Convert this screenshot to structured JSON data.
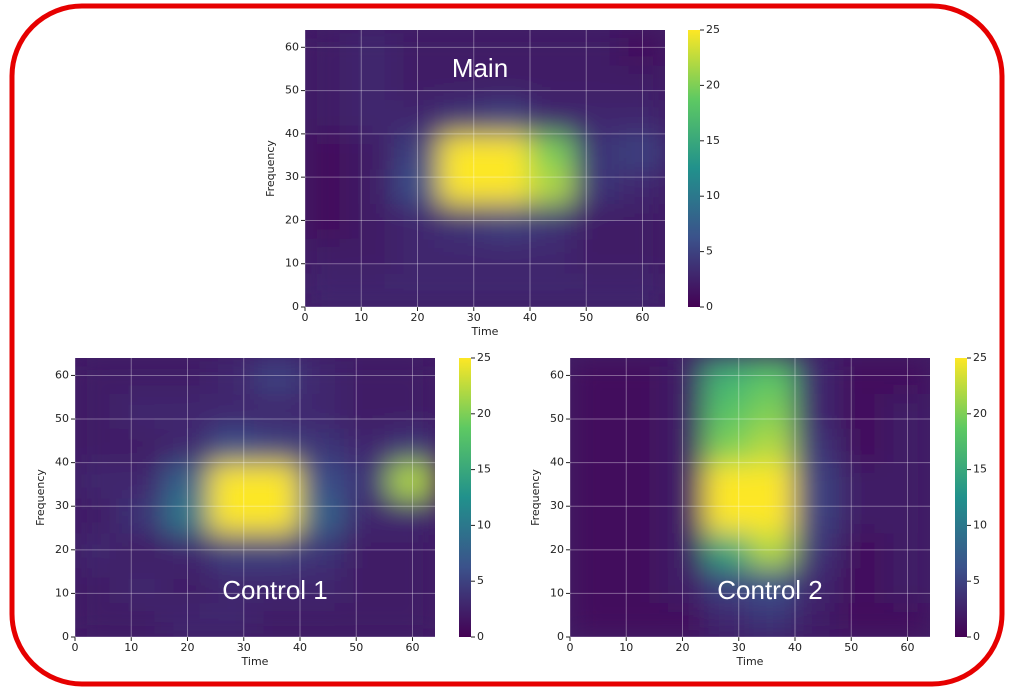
{
  "chart_data": [
    {
      "type": "heatmap",
      "title": "Main",
      "xlabel": "Time",
      "ylabel": "Frequency",
      "xlim": [
        0,
        64
      ],
      "ylim": [
        0,
        64
      ],
      "xticks": [
        0,
        10,
        20,
        30,
        40,
        50,
        60
      ],
      "yticks": [
        0,
        10,
        20,
        30,
        40,
        50,
        60
      ],
      "clim": [
        0,
        25
      ],
      "cticks": [
        0,
        5,
        10,
        15,
        20,
        25
      ],
      "grid": true,
      "z": [
        [
          3,
          3,
          3,
          3,
          3,
          3,
          3,
          3
        ],
        [
          2,
          2,
          3,
          3,
          3,
          3,
          2,
          2
        ],
        [
          1,
          2,
          3,
          4,
          5,
          4,
          2,
          2
        ],
        [
          1,
          2,
          6,
          25,
          25,
          22,
          4,
          3
        ],
        [
          1,
          2,
          5,
          25,
          25,
          20,
          4,
          5
        ],
        [
          2,
          3,
          3,
          4,
          5,
          3,
          3,
          3
        ],
        [
          2,
          3,
          2,
          2,
          2,
          2,
          2,
          2
        ],
        [
          2,
          3,
          2,
          2,
          2,
          2,
          2,
          1
        ]
      ]
    },
    {
      "type": "heatmap",
      "title": "Control 1",
      "xlabel": "Time",
      "ylabel": "Frequency",
      "xlim": [
        0,
        64
      ],
      "ylim": [
        0,
        64
      ],
      "xticks": [
        0,
        10,
        20,
        30,
        40,
        50,
        60
      ],
      "yticks": [
        0,
        10,
        20,
        30,
        40,
        50,
        60
      ],
      "clim": [
        0,
        25
      ],
      "cticks": [
        0,
        5,
        10,
        15,
        20,
        25
      ],
      "grid": true,
      "z": [
        [
          2,
          2,
          3,
          3,
          2,
          2,
          2,
          2
        ],
        [
          2,
          3,
          2,
          3,
          3,
          3,
          2,
          2
        ],
        [
          3,
          2,
          3,
          5,
          5,
          4,
          2,
          2
        ],
        [
          2,
          4,
          10,
          25,
          25,
          8,
          3,
          3
        ],
        [
          3,
          3,
          8,
          25,
          25,
          6,
          4,
          22
        ],
        [
          2,
          2,
          3,
          6,
          5,
          4,
          3,
          4
        ],
        [
          2,
          3,
          3,
          3,
          3,
          3,
          2,
          2
        ],
        [
          2,
          2,
          2,
          3,
          5,
          3,
          2,
          2
        ]
      ]
    },
    {
      "type": "heatmap",
      "title": "Control 2",
      "xlabel": "Time",
      "ylabel": "Frequency",
      "xlim": [
        0,
        64
      ],
      "ylim": [
        0,
        64
      ],
      "xticks": [
        0,
        10,
        20,
        30,
        40,
        50,
        60
      ],
      "yticks": [
        0,
        10,
        20,
        30,
        40,
        50,
        60
      ],
      "clim": [
        0,
        25
      ],
      "cticks": [
        0,
        5,
        10,
        15,
        20,
        25
      ],
      "grid": true,
      "z": [
        [
          1,
          1,
          1,
          3,
          4,
          2,
          1,
          1
        ],
        [
          1,
          1,
          2,
          5,
          6,
          3,
          1,
          2
        ],
        [
          1,
          1,
          2,
          15,
          22,
          4,
          1,
          2
        ],
        [
          1,
          1,
          2,
          25,
          25,
          5,
          2,
          2
        ],
        [
          1,
          1,
          2,
          25,
          25,
          5,
          2,
          2
        ],
        [
          1,
          1,
          2,
          20,
          22,
          4,
          1,
          2
        ],
        [
          1,
          1,
          2,
          18,
          20,
          3,
          1,
          2
        ],
        [
          1,
          1,
          2,
          16,
          18,
          3,
          1,
          1
        ]
      ]
    }
  ]
}
